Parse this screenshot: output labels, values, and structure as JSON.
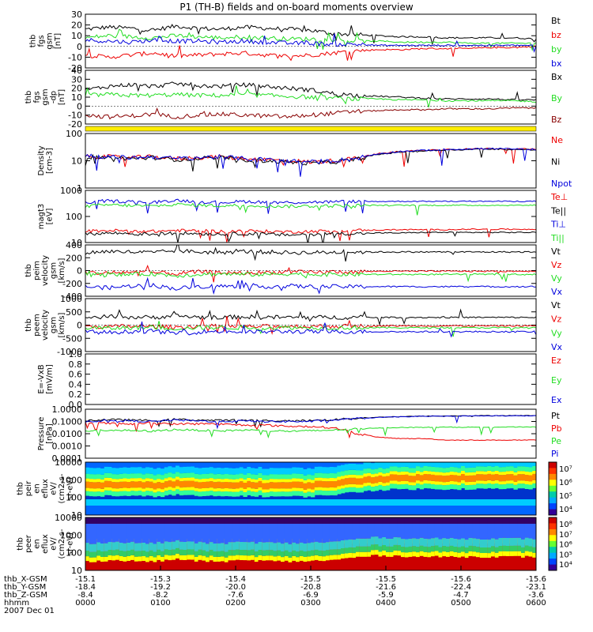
{
  "title": "P1 (TH-B) fields and on-board moments overview",
  "colors": {
    "black": "#000000",
    "red": "#ee0000",
    "green": "#22dd22",
    "blue": "#0000dd",
    "darkred": "#880000",
    "yellow": "#ffee00"
  },
  "chart_data": [
    {
      "type": "line",
      "id": "p1",
      "ylabel": [
        "thb",
        "fgs",
        "gsm",
        "[nT]"
      ],
      "yticks": [
        "30",
        "20",
        "10",
        "0",
        "-10",
        "-20"
      ],
      "ylim": [
        -20,
        30
      ],
      "series": [
        {
          "name": "Bt",
          "color": "#000000",
          "values": [
            16,
            18,
            17,
            15,
            19,
            17,
            16,
            18,
            17,
            16,
            15,
            12,
            11,
            10,
            9,
            9,
            8,
            8,
            8,
            8,
            7
          ]
        },
        {
          "name": "bz",
          "color": "#ee0000",
          "values": [
            -8,
            -10,
            -8,
            -6,
            -9,
            -8,
            -7,
            -6,
            -8,
            -9,
            -8,
            -6,
            -4,
            -3,
            -3,
            -2,
            -2,
            -2,
            -1,
            -1,
            0
          ]
        },
        {
          "name": "by",
          "color": "#22dd22",
          "values": [
            8,
            10,
            9,
            8,
            10,
            9,
            8,
            9,
            8,
            7,
            7,
            6,
            5,
            5,
            4,
            4,
            4,
            3,
            3,
            3,
            3
          ]
        },
        {
          "name": "bx",
          "color": "#0000dd",
          "values": [
            6,
            5,
            4,
            6,
            5,
            5,
            4,
            5,
            4,
            3,
            3,
            2,
            2,
            1,
            1,
            1,
            1,
            1,
            1,
            1,
            1
          ]
        }
      ]
    },
    {
      "type": "line",
      "id": "p2",
      "ylabel": [
        "thb",
        "fgs",
        "gsm",
        "-dp",
        "[nT]"
      ],
      "yticks": [
        "40",
        "30",
        "20",
        "10",
        "0",
        "-10",
        "-20"
      ],
      "ylim": [
        -20,
        40
      ],
      "series": [
        {
          "name": "Bx",
          "color": "#000000",
          "values": [
            18,
            22,
            24,
            22,
            25,
            23,
            22,
            24,
            22,
            20,
            18,
            14,
            12,
            11,
            10,
            9,
            8,
            8,
            8,
            7,
            7
          ]
        },
        {
          "name": "By",
          "color": "#22dd22",
          "values": [
            12,
            13,
            12,
            12,
            13,
            12,
            12,
            13,
            12,
            11,
            10,
            9,
            8,
            8,
            7,
            7,
            6,
            6,
            6,
            6,
            5
          ]
        },
        {
          "name": "Bz",
          "color": "#880000",
          "values": [
            -10,
            -12,
            -11,
            -9,
            -12,
            -10,
            -9,
            -10,
            -11,
            -12,
            -10,
            -8,
            -6,
            -5,
            -4,
            -4,
            -3,
            -3,
            -3,
            -2,
            -2
          ]
        }
      ]
    },
    {
      "type": "line",
      "id": "p3",
      "yscale": "log",
      "ylabel": [
        "Density",
        "[cm-3]"
      ],
      "yticks": [
        "100",
        "10",
        "1"
      ],
      "ylim": [
        1,
        100
      ],
      "series": [
        {
          "name": "Ne",
          "color": "#ee0000",
          "values": [
            15,
            14,
            13,
            14,
            12,
            13,
            14,
            12,
            11,
            10,
            9,
            10,
            12,
            18,
            22,
            24,
            26,
            27,
            28,
            27,
            26
          ]
        },
        {
          "name": "Ni",
          "color": "#000000",
          "values": [
            14,
            13,
            12,
            13,
            11,
            12,
            13,
            11,
            10,
            9,
            8,
            9,
            11,
            17,
            21,
            23,
            25,
            26,
            27,
            26,
            25
          ]
        },
        {
          "name": "Npot",
          "color": "#0000dd",
          "values": [
            15,
            14,
            13,
            14,
            12,
            13,
            14,
            12,
            11,
            10,
            9,
            10,
            12,
            18,
            22,
            24,
            26,
            27,
            28,
            27,
            26
          ]
        }
      ]
    },
    {
      "type": "line",
      "id": "p4",
      "yscale": "log",
      "ylabel": [
        "magt3",
        "[eV]"
      ],
      "yticks": [
        "1000",
        "100",
        "10"
      ],
      "ylim": [
        5,
        2000
      ],
      "series": [
        {
          "name": "Te⊥",
          "color": "#ee0000",
          "values": [
            18,
            20,
            19,
            18,
            20,
            19,
            18,
            19,
            18,
            17,
            18,
            19,
            20,
            21,
            22,
            22,
            22,
            23,
            23,
            23,
            23
          ]
        },
        {
          "name": "Te||",
          "color": "#000000",
          "values": [
            13,
            15,
            14,
            13,
            15,
            14,
            13,
            14,
            13,
            12,
            13,
            14,
            14,
            15,
            15,
            16,
            16,
            16,
            16,
            16,
            16
          ]
        },
        {
          "name": "Ti⊥",
          "color": "#0000dd",
          "values": [
            500,
            600,
            550,
            500,
            650,
            550,
            500,
            560,
            520,
            500,
            520,
            540,
            560,
            560,
            570,
            570,
            570,
            570,
            570,
            570,
            570
          ]
        },
        {
          "name": "Ti||",
          "color": "#22dd22",
          "values": [
            320,
            380,
            350,
            330,
            400,
            360,
            340,
            360,
            330,
            320,
            330,
            340,
            350,
            360,
            360,
            360,
            360,
            360,
            360,
            360,
            360
          ]
        }
      ]
    },
    {
      "type": "line",
      "id": "p5",
      "ylabel": [
        "thb",
        "peim",
        "velocity",
        "gsm",
        "[km/s]"
      ],
      "yticks": [
        "400",
        "200",
        "0",
        "-200",
        "-400"
      ],
      "ylim": [
        -400,
        400
      ],
      "series": [
        {
          "name": "Vt",
          "color": "#000000",
          "values": [
            280,
            300,
            290,
            280,
            310,
            290,
            280,
            300,
            290,
            280,
            280,
            285,
            290,
            290,
            290,
            290,
            290,
            290,
            290,
            290,
            290
          ]
        },
        {
          "name": "Vz",
          "color": "#ee0000",
          "values": [
            -30,
            -40,
            -20,
            -30,
            -50,
            -20,
            -30,
            -40,
            -30,
            -20,
            -30,
            -20,
            -20,
            -10,
            -10,
            -10,
            -10,
            -10,
            -10,
            -10,
            -10
          ]
        },
        {
          "name": "Vy",
          "color": "#22dd22",
          "values": [
            -60,
            -70,
            -60,
            -50,
            -80,
            -60,
            -50,
            -60,
            -60,
            -50,
            -60,
            -60,
            -60,
            -60,
            -60,
            -60,
            -60,
            -60,
            -60,
            -60,
            -60
          ]
        },
        {
          "name": "Vx",
          "color": "#0000dd",
          "values": [
            -250,
            -270,
            -240,
            -230,
            -280,
            -250,
            -240,
            -260,
            -250,
            -240,
            -250,
            -250,
            -250,
            -250,
            -250,
            -250,
            -250,
            -250,
            -250,
            -250,
            -250
          ]
        }
      ]
    },
    {
      "type": "line",
      "id": "p6",
      "ylabel": [
        "thb",
        "peem",
        "velocity",
        "gsm",
        "[km/s]"
      ],
      "yticks": [
        "1000",
        "500",
        "0",
        "-500",
        "-1000"
      ],
      "ylim": [
        -1000,
        1000
      ],
      "series": [
        {
          "name": "Vt",
          "color": "#000000",
          "values": [
            280,
            320,
            300,
            290,
            350,
            300,
            290,
            310,
            300,
            290,
            290,
            290,
            290,
            290,
            290,
            290,
            290,
            290,
            290,
            290,
            290
          ]
        },
        {
          "name": "Vz",
          "color": "#ee0000",
          "values": [
            -50,
            -60,
            -40,
            -50,
            -80,
            -40,
            -50,
            -60,
            -50,
            -40,
            -50,
            -40,
            -40,
            -30,
            -30,
            -30,
            -30,
            -30,
            -30,
            -30,
            -30
          ]
        },
        {
          "name": "Vy",
          "color": "#22dd22",
          "values": [
            -100,
            -120,
            -100,
            -90,
            -130,
            -100,
            -90,
            -100,
            -100,
            -90,
            -100,
            -100,
            -100,
            -100,
            -100,
            -100,
            -100,
            -100,
            -100,
            -100,
            -100
          ]
        },
        {
          "name": "Vx",
          "color": "#0000dd",
          "values": [
            -250,
            -280,
            -240,
            -230,
            -300,
            -250,
            -240,
            -260,
            -250,
            -240,
            -250,
            -250,
            -250,
            -250,
            -250,
            -250,
            -250,
            -250,
            -250,
            -250,
            -250
          ]
        }
      ]
    },
    {
      "type": "line",
      "id": "p7",
      "ylabel": [
        "E=-VxB",
        "[mV/m]"
      ],
      "yticks": [
        "1.0",
        "0.8",
        "0.6",
        "0.4",
        "0.2",
        "0.0"
      ],
      "ylim": [
        0,
        1
      ],
      "legend_labels": [
        {
          "name": "Ez",
          "color": "#ee0000"
        },
        {
          "name": "Ey",
          "color": "#22dd22"
        },
        {
          "name": "Ex",
          "color": "#0000dd"
        }
      ],
      "series": []
    },
    {
      "type": "line",
      "id": "p8",
      "yscale": "log",
      "ylabel": [
        "Pressure",
        "[nPa]"
      ],
      "yticks": [
        "1.0000",
        "0.1000",
        "0.0100",
        "0.0010",
        "0.0001"
      ],
      "ylim": [
        0.0001,
        1
      ],
      "series": [
        {
          "name": "Pt",
          "color": "#000000",
          "values": [
            0.12,
            0.14,
            0.13,
            0.12,
            0.15,
            0.13,
            0.12,
            0.13,
            0.12,
            0.11,
            0.12,
            0.14,
            0.18,
            0.22,
            0.25,
            0.27,
            0.28,
            0.29,
            0.3,
            0.3,
            0.3
          ]
        },
        {
          "name": "Pb",
          "color": "#ee0000",
          "values": [
            0.08,
            0.07,
            0.06,
            0.08,
            0.06,
            0.07,
            0.06,
            0.05,
            0.05,
            0.04,
            0.04,
            0.03,
            0.01,
            0.005,
            0.004,
            0.004,
            0.003,
            0.003,
            0.003,
            0.003,
            0.003
          ]
        },
        {
          "name": "Pe",
          "color": "#22dd22",
          "values": [
            0.015,
            0.02,
            0.018,
            0.016,
            0.022,
            0.019,
            0.017,
            0.02,
            0.018,
            0.016,
            0.017,
            0.02,
            0.025,
            0.03,
            0.032,
            0.033,
            0.034,
            0.034,
            0.035,
            0.035,
            0.035
          ]
        },
        {
          "name": "Pi",
          "color": "#0000dd",
          "values": [
            0.1,
            0.12,
            0.11,
            0.1,
            0.13,
            0.11,
            0.1,
            0.11,
            0.1,
            0.1,
            0.1,
            0.13,
            0.17,
            0.21,
            0.24,
            0.26,
            0.27,
            0.28,
            0.29,
            0.29,
            0.29
          ]
        }
      ]
    },
    {
      "type": "heatmap",
      "id": "p9",
      "ylabel": [
        "thb",
        "peir",
        "en",
        "eflux",
        "eV/",
        "(cm2-s-",
        "sr-eV)"
      ],
      "yticks": [
        "10000",
        "1000",
        "100",
        "10"
      ],
      "ylim": [
        10,
        20000
      ],
      "colorbar_ticks": [
        "10⁷",
        "10⁶",
        "10⁵",
        "10⁴"
      ],
      "peak_energy_eV": [
        700,
        800,
        750,
        700,
        900,
        750,
        700,
        780,
        720,
        700,
        720,
        900,
        1300,
        1800,
        2000,
        2100,
        2100,
        2100,
        2100,
        2100,
        2100
      ]
    },
    {
      "type": "heatmap",
      "id": "p10",
      "ylabel": [
        "thb",
        "peer",
        "en",
        "eflux",
        "eV/",
        "(cm2-s-",
        "sr-eV)"
      ],
      "yticks": [
        "10000",
        "1000",
        "100",
        "10"
      ],
      "ylim": [
        10,
        20000
      ],
      "colorbar_ticks": [
        "10⁸",
        "10⁷",
        "10⁶",
        "10⁵",
        "10⁴"
      ],
      "peak_energy_eV": [
        50,
        60,
        55,
        50,
        70,
        55,
        50,
        60,
        55,
        50,
        55,
        60,
        90,
        120,
        110,
        100,
        100,
        100,
        100,
        100,
        100
      ]
    }
  ],
  "footer": {
    "rows": [
      {
        "label": "thb_X-GSM",
        "values": [
          "-15.1",
          "-15.3",
          "-15.4",
          "-15.5",
          "-15.5",
          "-15.6",
          "-15.6"
        ]
      },
      {
        "label": "thb_Y-GSM",
        "values": [
          "-18.4",
          "-19.2",
          "-20.0",
          "-20.8",
          "-21.6",
          "-22.4",
          "-23.1"
        ]
      },
      {
        "label": "thb_Z-GSM",
        "values": [
          "-8.4",
          "-8.2",
          "-7.6",
          "-6.9",
          "-5.9",
          "-4.7",
          "-3.6"
        ]
      },
      {
        "label": "hhmm",
        "values": [
          "0000",
          "0100",
          "0200",
          "0300",
          "0400",
          "0500",
          "0600"
        ]
      }
    ],
    "date": "2007 Dec 01"
  }
}
